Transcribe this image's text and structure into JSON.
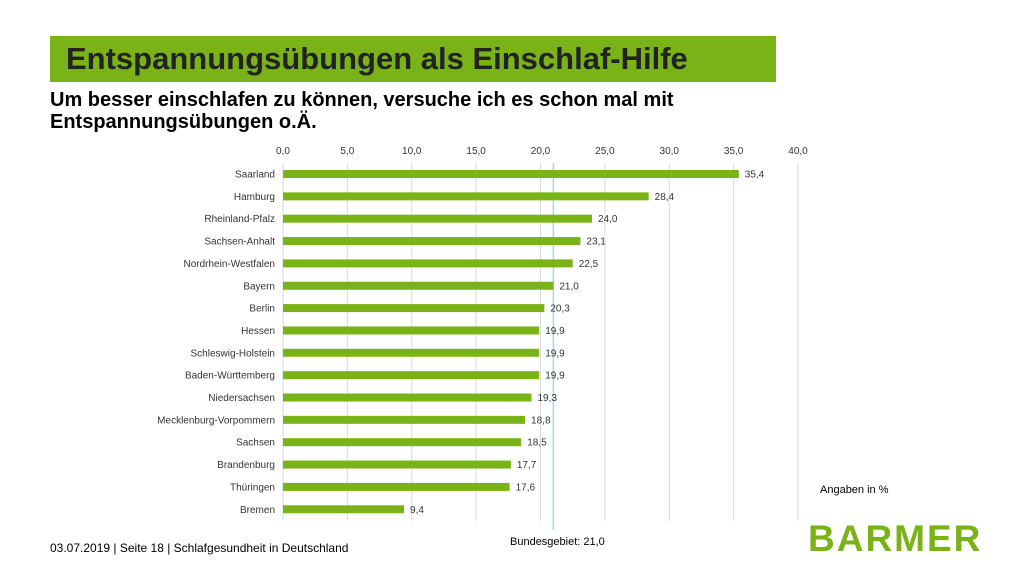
{
  "header": {
    "title": "Entspannungsübungen als Einschlaf-Hilfe",
    "subtitle": "Um besser einschlafen zu können, versuche ich es schon mal mit Entspannungsübungen o.Ä."
  },
  "notes": {
    "unit": "Angaben in %",
    "national": "Bundesgebiet: 21,0"
  },
  "footer": {
    "text": "03.07.2019 | Seite 18 | Schlafgesundheit in Deutschland"
  },
  "logo": {
    "text": "BARMER"
  },
  "colors": {
    "accent": "#7ab317",
    "bar": "#7ab317",
    "reference_line": "#9fd8f0",
    "grid": "#d9d9d9"
  },
  "chart_data": {
    "type": "bar",
    "orientation": "horizontal",
    "title": "",
    "xlabel": "",
    "ylabel": "",
    "xlim": [
      0,
      40
    ],
    "x_ticks": [
      0,
      5,
      10,
      15,
      20,
      25,
      30,
      35,
      40
    ],
    "x_tick_labels": [
      "0,0",
      "5,0",
      "10,0",
      "15,0",
      "20,0",
      "25,0",
      "30,0",
      "35,0",
      "40,0"
    ],
    "x_axis_position": "top",
    "grid": true,
    "categories": [
      "Saarland",
      "Hamburg",
      "Rheinland-Pfalz",
      "Sachsen-Anhalt",
      "Nordrhein-Westfalen",
      "Bayern",
      "Berlin",
      "Hessen",
      "Schleswig-Holstein",
      "Baden-Württemberg",
      "Niedersachsen",
      "Mecklenburg-Vorpommern",
      "Sachsen",
      "Brandenburg",
      "Thüringen",
      "Bremen"
    ],
    "values": [
      35.4,
      28.4,
      24.0,
      23.1,
      22.5,
      21.0,
      20.3,
      19.9,
      19.9,
      19.9,
      19.3,
      18.8,
      18.5,
      17.7,
      17.6,
      9.4
    ],
    "value_labels": [
      "35,4",
      "28,4",
      "24,0",
      "23,1",
      "22,5",
      "21,0",
      "20,3",
      "19,9",
      "19,9",
      "19,9",
      "19,3",
      "18,8",
      "18,5",
      "17,7",
      "17,6",
      "9,4"
    ],
    "reference_line": {
      "value": 21.0
    }
  }
}
